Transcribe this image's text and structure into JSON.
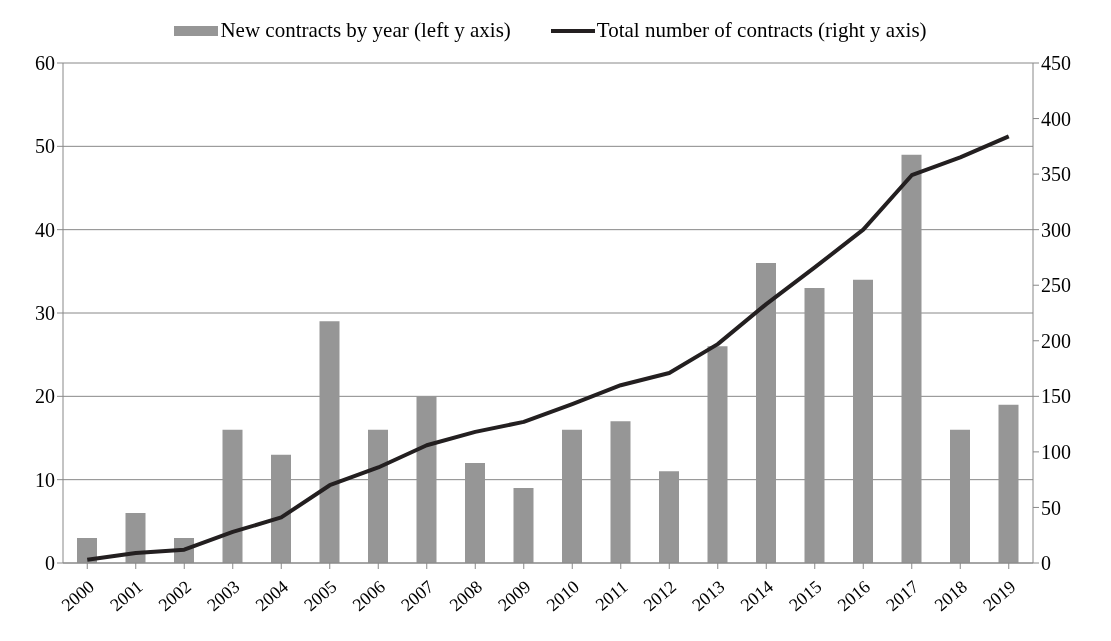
{
  "chart_data": {
    "type": "bar",
    "categories": [
      "2000",
      "2001",
      "2002",
      "2003",
      "2004",
      "2005",
      "2006",
      "2007",
      "2008",
      "2009",
      "2010",
      "2011",
      "2012",
      "2013",
      "2014",
      "2015",
      "2016",
      "2017",
      "2018",
      "2019"
    ],
    "series": [
      {
        "name": "New contracts by year (left y axis)",
        "color": "#969696",
        "values": [
          3,
          6,
          3,
          16,
          13,
          29,
          16,
          20,
          12,
          9,
          16,
          17,
          11,
          26,
          36,
          33,
          34,
          49,
          16,
          19
        ]
      },
      {
        "name": "Total number of contracts (right y axis)",
        "type": "line",
        "axis": "y2",
        "color": "#231f20",
        "values": [
          3,
          9,
          12,
          28,
          41,
          70,
          86,
          106,
          118,
          127,
          143,
          160,
          171,
          197,
          233,
          266,
          300,
          349,
          365,
          384
        ]
      }
    ],
    "ylim": [
      0,
      60
    ],
    "yticks": [
      0,
      10,
      20,
      30,
      40,
      50,
      60
    ],
    "y2lim": [
      0,
      450
    ],
    "y2ticks": [
      0,
      50,
      100,
      150,
      200,
      250,
      300,
      350,
      400,
      450
    ],
    "grid": "y",
    "legend": "top",
    "marker": "none",
    "line_style": "solid"
  }
}
